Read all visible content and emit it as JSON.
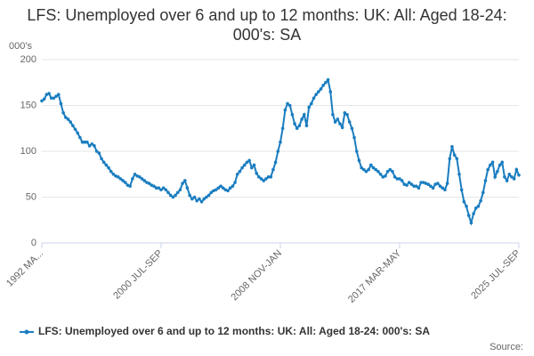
{
  "chart_data": {
    "type": "line",
    "title": "LFS: Unemployed over 6 and up to 12 months: UK: All: Aged 18-24: 000's: SA",
    "y_label": "000's",
    "source": "Source:",
    "categories": [
      "1992 MA...",
      null,
      null,
      null,
      null,
      null,
      null,
      null,
      null,
      null,
      null,
      null,
      null,
      null,
      null,
      null,
      null,
      null,
      null,
      null,
      null,
      null,
      null,
      null,
      null,
      null,
      null,
      null,
      null,
      null,
      null,
      null,
      null,
      null,
      null,
      null,
      null,
      null,
      null,
      null,
      null,
      null,
      null,
      null,
      null,
      null,
      null,
      null,
      null,
      null,
      "2000 JUL-SEP",
      null,
      null,
      null,
      null,
      null,
      null,
      null,
      null,
      null,
      null,
      null,
      null,
      null,
      null,
      null,
      null,
      null,
      null,
      null,
      null,
      null,
      null,
      null,
      null,
      null,
      null,
      null,
      null,
      null,
      null,
      null,
      null,
      null,
      null,
      null,
      null,
      null,
      null,
      null,
      null,
      null,
      null,
      null,
      null,
      null,
      null,
      null,
      null,
      null,
      "2008 NOV-JAN",
      null,
      null,
      null,
      null,
      null,
      null,
      null,
      null,
      null,
      null,
      null,
      null,
      null,
      null,
      null,
      null,
      null,
      null,
      null,
      null,
      null,
      null,
      null,
      null,
      null,
      null,
      null,
      null,
      null,
      null,
      null,
      null,
      null,
      null,
      null,
      null,
      null,
      null,
      null,
      null,
      null,
      null,
      null,
      null,
      null,
      null,
      null,
      null,
      null,
      "2017 MAR-MAY",
      null,
      null,
      null,
      null,
      null,
      null,
      null,
      null,
      null,
      null,
      null,
      null,
      null,
      null,
      null,
      null,
      null,
      null,
      null,
      null,
      null,
      null,
      null,
      null,
      null,
      null,
      null,
      null,
      null,
      null,
      null,
      null,
      null,
      null,
      null,
      null,
      null,
      null,
      null,
      null,
      null,
      null,
      null,
      null,
      null,
      null,
      null,
      null,
      null,
      "2025 JUL-SEP"
    ],
    "series": [
      {
        "name": "LFS: Unemployed over 6 and up to 12 months: UK: All: Aged 18-24: 000's: SA",
        "color": "#1a7dc0",
        "values": [
          155,
          157,
          162,
          163,
          158,
          158,
          160,
          162,
          152,
          142,
          137,
          135,
          132,
          128,
          124,
          120,
          115,
          110,
          110,
          110,
          106,
          108,
          106,
          100,
          98,
          92,
          88,
          85,
          82,
          78,
          75,
          73,
          72,
          70,
          68,
          66,
          63,
          62,
          70,
          75,
          73,
          72,
          70,
          68,
          66,
          65,
          63,
          62,
          60,
          60,
          58,
          60,
          58,
          55,
          52,
          50,
          52,
          55,
          58,
          65,
          68,
          60,
          52,
          48,
          50,
          46,
          48,
          45,
          48,
          50,
          52,
          55,
          57,
          58,
          60,
          62,
          60,
          58,
          57,
          60,
          62,
          66,
          75,
          78,
          82,
          85,
          88,
          90,
          82,
          85,
          76,
          72,
          70,
          68,
          70,
          72,
          72,
          80,
          88,
          100,
          110,
          125,
          145,
          152,
          150,
          140,
          130,
          125,
          128,
          135,
          140,
          128,
          148,
          152,
          158,
          162,
          165,
          168,
          172,
          175,
          178,
          165,
          140,
          132,
          135,
          130,
          126,
          142,
          140,
          132,
          125,
          115,
          100,
          90,
          82,
          80,
          78,
          80,
          85,
          82,
          80,
          78,
          75,
          72,
          73,
          78,
          80,
          78,
          72,
          70,
          70,
          68,
          64,
          63,
          66,
          64,
          62,
          62,
          60,
          66,
          66,
          65,
          64,
          62,
          60,
          64,
          65,
          62,
          60,
          58,
          65,
          92,
          105,
          96,
          92,
          75,
          58,
          45,
          40,
          30,
          22,
          32,
          38,
          40,
          46,
          55,
          68,
          80,
          85,
          88,
          72,
          78,
          85,
          88,
          72,
          68,
          75,
          72,
          70,
          80,
          74
        ]
      }
    ],
    "ylim": [
      0,
      200
    ],
    "yticks": [
      0,
      50,
      100,
      150,
      200
    ],
    "grid": true
  }
}
